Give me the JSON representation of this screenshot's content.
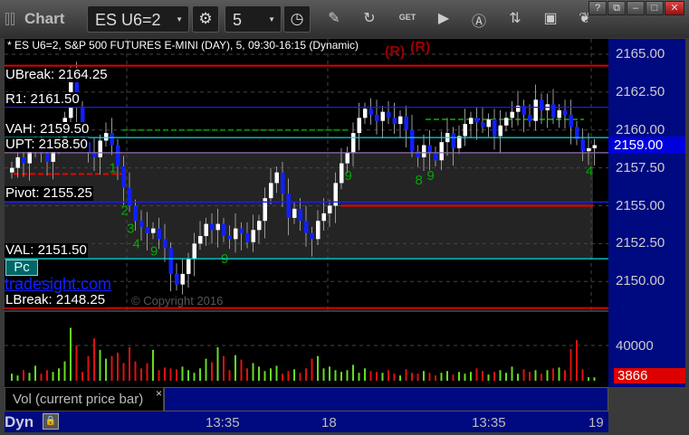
{
  "window": {
    "title": "Chart",
    "buttons": [
      "?",
      "restore",
      "minimize",
      "maximize",
      "close"
    ]
  },
  "toolbar": {
    "symbol": "ES U6=2",
    "interval": "5",
    "icons": [
      "gear-icon",
      "clock-icon",
      "pencil-icon",
      "refresh-chart-icon",
      "get-icon",
      "play-icon",
      "alert-icon",
      "swap-icon",
      "comment-icon",
      "twitter-icon"
    ]
  },
  "chart": {
    "header": "* ES U6=2, S&P 500 FUTURES E-MINI (DAY), 5, 09:30-16:15 (Dynamic)",
    "r_marks": [
      "(R)",
      "(R)"
    ],
    "levels": [
      {
        "label": "UBreak: 2164.25",
        "price": 2164.25,
        "color": "#e00000",
        "style": "solid"
      },
      {
        "label": "R1: 2161.50",
        "price": 2161.5,
        "color": "#1a1aff",
        "style": "solid"
      },
      {
        "label": "VAH: 2159.50",
        "price": 2159.5,
        "color": "#00e0e0",
        "style": "solid"
      },
      {
        "label": "UPT: 2158.50",
        "price": 2158.5,
        "color": "#9070b0",
        "style": "solid"
      },
      {
        "label": "Pivot: 2155.25",
        "price": 2155.25,
        "color": "#1a1aff",
        "style": "solid"
      },
      {
        "label": "VAL: 2151.50",
        "price": 2151.5,
        "color": "#00e0e0",
        "style": "solid"
      },
      {
        "label": "LBreak: 2148.25",
        "price": 2148.25,
        "color": "#e00000",
        "style": "solid"
      }
    ],
    "price_ticks": [
      "2165.00",
      "2162.50",
      "2160.00",
      "2157.50",
      "2155.00",
      "2152.50",
      "2150.00"
    ],
    "last_price": "2159.00",
    "pc_label": "Pc",
    "watermark": "tradesight.com",
    "copyright": "© Copyright 2016",
    "closes": [
      2157.5,
      2158.2,
      2157.8,
      2158.6,
      2159.2,
      2158.5,
      2157.9,
      2158.8,
      2159.5,
      2160.8,
      2163.5,
      2161.5,
      2159.2,
      2158.5,
      2158.2,
      2159.3,
      2159.8,
      2159.0,
      2157.6,
      2156.2,
      2155.0,
      2154.0,
      2153.6,
      2153.2,
      2153.5,
      2152.8,
      2152.2,
      2150.5,
      2149.8,
      2150.5,
      2151.5,
      2152.5,
      2153.0,
      2153.8,
      2153.4,
      2153.8,
      2153.0,
      2152.8,
      2153.5,
      2153.2,
      2152.6,
      2153.4,
      2154.0,
      2155.5,
      2156.5,
      2157.2,
      2155.8,
      2154.2,
      2154.8,
      2154.0,
      2153.2,
      2152.8,
      2154.0,
      2154.5,
      2155.0,
      2156.5,
      2157.8,
      2158.5,
      2159.8,
      2160.8,
      2161.4,
      2161.0,
      2160.6,
      2161.2,
      2160.8,
      2160.4,
      2160.9,
      2160.0,
      2158.6,
      2158.2,
      2159.0,
      2158.5,
      2158.0,
      2159.2,
      2159.8,
      2158.8,
      2159.6,
      2160.4,
      2160.8,
      2160.5,
      2160.2,
      2160.7,
      2159.6,
      2160.3,
      2160.8,
      2161.2,
      2161.6,
      2161.0,
      2160.6,
      2162.0,
      2161.3,
      2161.7,
      2160.8,
      2161.3,
      2161.0,
      2160.2,
      2159.4,
      2158.6,
      2158.8,
      2159.0
    ],
    "count_marks": [
      {
        "bar": 17,
        "text": "1"
      },
      {
        "bar": 19,
        "text": "2"
      },
      {
        "bar": 20,
        "text": "3"
      },
      {
        "bar": 21,
        "text": "4"
      },
      {
        "bar": 24,
        "text": "9"
      },
      {
        "bar": 36,
        "text": "9"
      },
      {
        "bar": 57,
        "text": "9"
      },
      {
        "bar": 69,
        "text": "8"
      },
      {
        "bar": 71,
        "text": "9"
      },
      {
        "bar": 98,
        "text": "4"
      }
    ]
  },
  "volume": {
    "label": "Vol (current price bar)",
    "close_label": "×",
    "tick": "40000",
    "last": "3866",
    "values": [
      8000,
      6000,
      12000,
      9000,
      17000,
      8000,
      12000,
      10000,
      14000,
      22000,
      60000,
      40000,
      10000,
      28000,
      48000,
      35000,
      25000,
      28000,
      32000,
      20000,
      38000,
      22000,
      14000,
      20000,
      35000,
      12000,
      15000,
      14000,
      13000,
      16000,
      12000,
      9000,
      14000,
      25000,
      21000,
      38000,
      28000,
      12000,
      29000,
      24000,
      14000,
      20000,
      16000,
      11000,
      14000,
      17000,
      8000,
      11000,
      13000,
      9000,
      14000,
      25000,
      28000,
      14000,
      16000,
      12000,
      10000,
      12000,
      18000,
      9000,
      14000,
      11000,
      10000,
      9000,
      12000,
      8000,
      6000,
      13000,
      9000,
      8000,
      11000,
      9000,
      6000,
      9000,
      11000,
      7000,
      10000,
      8000,
      10000,
      14000,
      11000,
      7000,
      10000,
      12000,
      9000,
      16000,
      8000,
      13000,
      10000,
      12000,
      8000,
      12000,
      14000,
      15000,
      12000,
      36000,
      46000,
      13000,
      4000,
      3866
    ],
    "up_color": "#66dd22",
    "down_color": "#e01010"
  },
  "time_axis": {
    "mode": "Dyn",
    "ticks": [
      "13:35",
      "18",
      "13:35",
      "19"
    ]
  },
  "colors": {
    "up_candle": "#ffffff",
    "down_candle": "#1020ff",
    "axis_bg": "#000a80"
  }
}
